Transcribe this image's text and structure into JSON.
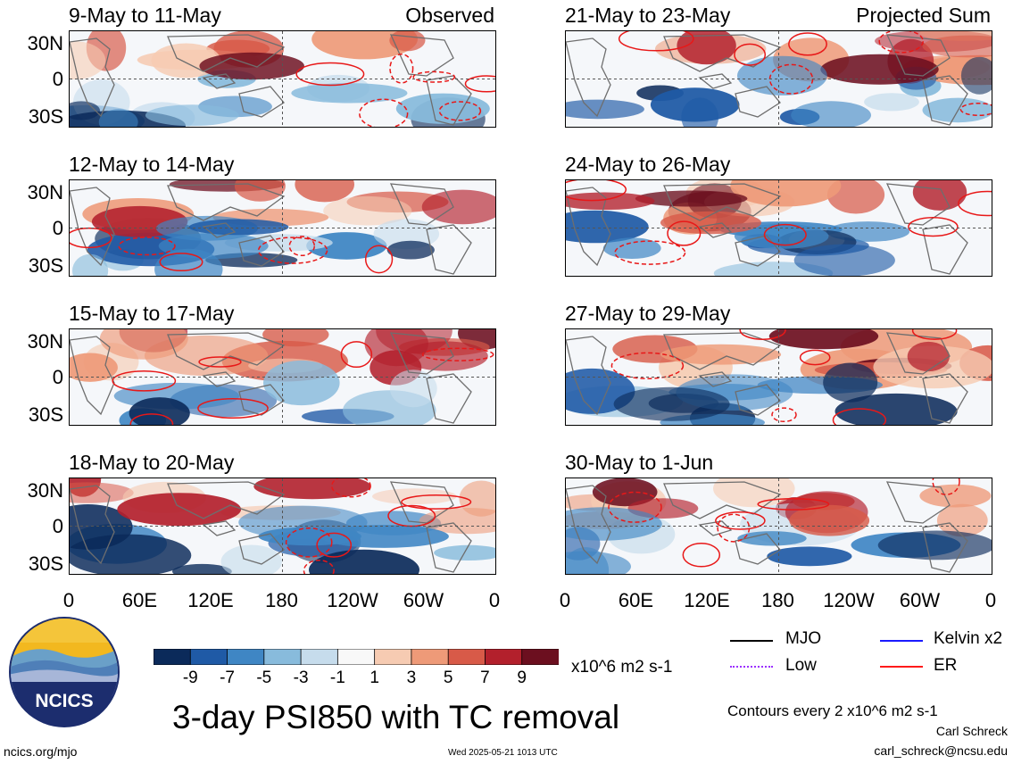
{
  "panels": [
    {
      "title": "9-May to 11-May",
      "tag": "Observed"
    },
    {
      "title": "12-May to 14-May",
      "tag": ""
    },
    {
      "title": "15-May to 17-May",
      "tag": ""
    },
    {
      "title": "18-May to 20-May",
      "tag": ""
    },
    {
      "title": "21-May to 23-May",
      "tag": "Projected Sum"
    },
    {
      "title": "24-May to 26-May",
      "tag": ""
    },
    {
      "title": "27-May to 29-May",
      "tag": ""
    },
    {
      "title": "30-May to 1-Jun",
      "tag": ""
    }
  ],
  "lat_labels": [
    "30N",
    "0",
    "30S"
  ],
  "lon_labels": [
    "0",
    "60E",
    "120E",
    "180",
    "120W",
    "60W",
    "0"
  ],
  "colorbar": {
    "labels": [
      "-9",
      "-7",
      "-5",
      "-3",
      "-1",
      "1",
      "3",
      "5",
      "7",
      "9"
    ],
    "colors": [
      "#0b2a5a",
      "#1f5aa6",
      "#3f86c4",
      "#88bbdc",
      "#c6dcec",
      "#f8f8f8",
      "#f6cbb2",
      "#ee9a78",
      "#d85a48",
      "#b3202c",
      "#6c0f1f"
    ],
    "units": "x10^6 m2 s-1"
  },
  "title": "3-day PSI850 with TC removal",
  "legend": [
    {
      "label": "MJO",
      "color": "#000000"
    },
    {
      "label": "Kelvin x2",
      "color": "#1a1aff"
    },
    {
      "label": "Low",
      "color": "#9b30ff"
    },
    {
      "label": "ER",
      "color": "#ff1a1a"
    }
  ],
  "contour_note": "Contours every 2 x10^6 m2 s-1",
  "footer": {
    "site": "ncics.org/mjo",
    "timestamp": "Wed 2025-05-21 1013 UTC",
    "author": "Carl Schreck",
    "email": "carl_schreck@ncsu.edu"
  },
  "logo_text": "NCICS"
}
